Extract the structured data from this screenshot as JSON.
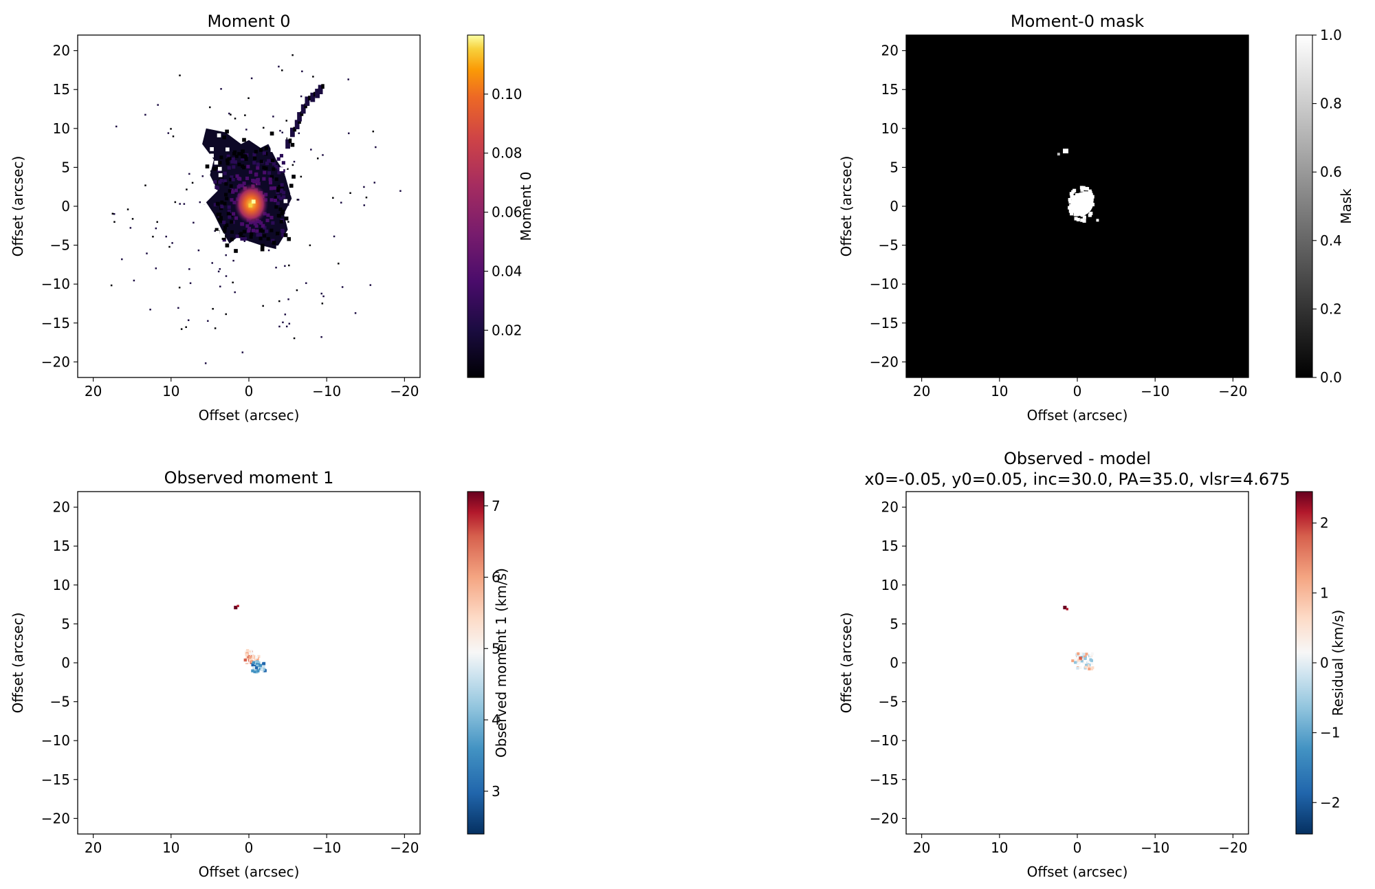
{
  "figure": {
    "panels": [
      {
        "id": "moment0",
        "title": "Moment 0",
        "subtitle": "",
        "xlabel": "Offset (arcsec)",
        "ylabel": "Offset (arcsec)",
        "colorbar": {
          "label": "Moment 0",
          "cmap": "inferno",
          "ticks": [
            "0.02",
            "0.04",
            "0.06",
            "0.08",
            "0.10"
          ],
          "tick_values": [
            0.02,
            0.04,
            0.06,
            0.08,
            0.1
          ],
          "range": [
            0.004,
            0.12
          ]
        },
        "background": "#ffffff"
      },
      {
        "id": "mask",
        "title": "Moment-0 mask",
        "subtitle": "",
        "xlabel": "Offset (arcsec)",
        "ylabel": "Offset (arcsec)",
        "colorbar": {
          "label": "Mask",
          "cmap": "gray",
          "ticks": [
            "0.0",
            "0.2",
            "0.4",
            "0.6",
            "0.8",
            "1.0"
          ],
          "tick_values": [
            0.0,
            0.2,
            0.4,
            0.6,
            0.8,
            1.0
          ],
          "range": [
            0.0,
            1.0
          ]
        },
        "background": "#000000"
      },
      {
        "id": "moment1",
        "title": "Observed moment 1",
        "subtitle": "",
        "xlabel": "Offset (arcsec)",
        "ylabel": "Offset (arcsec)",
        "colorbar": {
          "label": "Observed moment 1 (km/s)",
          "cmap": "RdBu_r",
          "ticks": [
            "3",
            "4",
            "5",
            "6",
            "7"
          ],
          "tick_values": [
            3,
            4,
            5,
            6,
            7
          ],
          "range": [
            2.4,
            7.2
          ]
        },
        "background": "#ffffff"
      },
      {
        "id": "residual",
        "title": "Observed - model",
        "subtitle": "x0=-0.05, y0=0.05, inc=30.0, PA=35.0, vlsr=4.675",
        "xlabel": "Offset (arcsec)",
        "ylabel": "Offset (arcsec)",
        "colorbar": {
          "label": "Residual (km/s)",
          "cmap": "RdBu_r",
          "ticks": [
            "−2",
            "−1",
            "0",
            "1",
            "2"
          ],
          "tick_values": [
            -2,
            -1,
            0,
            1,
            2
          ],
          "range": [
            -2.45,
            2.45
          ]
        },
        "background": "#ffffff"
      }
    ]
  },
  "chart_data": [
    {
      "type": "heatmap",
      "title": "Moment 0",
      "xlabel": "Offset (arcsec)",
      "ylabel": "Offset (arcsec)",
      "xlim": [
        22,
        -22
      ],
      "ylim": [
        -22,
        22
      ],
      "xticks": [
        20,
        10,
        0,
        -10,
        -20
      ],
      "yticks": [
        -20,
        -15,
        -10,
        -5,
        0,
        5,
        10,
        15,
        20
      ],
      "xtick_labels": [
        "20",
        "10",
        "0",
        "−10",
        "−20"
      ],
      "ytick_labels": [
        "−20",
        "−15",
        "−10",
        "−5",
        "0",
        "5",
        "10",
        "15",
        "20"
      ],
      "colorbar_label": "Moment 0",
      "vrange": [
        0.004,
        0.12
      ],
      "emission": "irregular cloud centred near (0,0), extending from x≈6 to x≈-5 and y≈-5.5 to y≈10, with a filament toward x≈-9, y≈15; peak ≈0.12 near (-0.5,0.5); sparse isolated pixels across the field"
    },
    {
      "type": "heatmap",
      "title": "Moment-0 mask",
      "xlabel": "Offset (arcsec)",
      "ylabel": "Offset (arcsec)",
      "xlim": [
        22,
        -22
      ],
      "ylim": [
        -22,
        22
      ],
      "xticks": [
        20,
        10,
        0,
        -10,
        -20
      ],
      "yticks": [
        -20,
        -15,
        -10,
        -5,
        0,
        5,
        10,
        15,
        20
      ],
      "xtick_labels": [
        "20",
        "10",
        "0",
        "−10",
        "−20"
      ],
      "ytick_labels": [
        "−20",
        "−15",
        "−10",
        "−5",
        "0",
        "5",
        "10",
        "15",
        "20"
      ],
      "colorbar_label": "Mask",
      "vrange": [
        0,
        1
      ],
      "emission": "mask = 1 in a compact region around (-0.5,0) spanning x≈3 to -3, y≈-2 to 3, plus a small patch near (1.5,7); 0 elsewhere"
    },
    {
      "type": "heatmap",
      "title": "Observed moment 1",
      "xlabel": "Offset (arcsec)",
      "ylabel": "Offset (arcsec)",
      "xlim": [
        22,
        -22
      ],
      "ylim": [
        -22,
        22
      ],
      "xticks": [
        20,
        10,
        0,
        -10,
        -20
      ],
      "yticks": [
        -20,
        -15,
        -10,
        -5,
        0,
        5,
        10,
        15,
        20
      ],
      "xtick_labels": [
        "20",
        "10",
        "0",
        "−10",
        "−20"
      ],
      "ytick_labels": [
        "−20",
        "−15",
        "−10",
        "−5",
        "0",
        "5",
        "10",
        "15",
        "20"
      ],
      "colorbar_label": "Observed moment 1 (km/s)",
      "vrange": [
        2.4,
        7.2
      ],
      "emission": "redshifted (~6 km/s) pixels near (-0.5,1), blueshifted (~3 km/s) pixels near (-1.5,-0.5), a ~7 km/s knot near (1.5,7)"
    },
    {
      "type": "heatmap",
      "title": "Observed - model",
      "subtitle": "x0=-0.05, y0=0.05, inc=30.0, PA=35.0, vlsr=4.675",
      "xlabel": "Offset (arcsec)",
      "ylabel": "Offset (arcsec)",
      "xlim": [
        22,
        -22
      ],
      "ylim": [
        -22,
        22
      ],
      "xticks": [
        20,
        10,
        0,
        -10,
        -20
      ],
      "yticks": [
        -20,
        -15,
        -10,
        -5,
        0,
        5,
        10,
        15,
        20
      ],
      "xtick_labels": [
        "20",
        "10",
        "0",
        "−10",
        "−20"
      ],
      "ytick_labels": [
        "−20",
        "−15",
        "−10",
        "−5",
        "0",
        "5",
        "10",
        "15",
        "20"
      ],
      "colorbar_label": "Residual (km/s)",
      "vrange": [
        -2.45,
        2.45
      ],
      "emission": "small residuals (~+0.7 km/s) near (-0.5,0.5), slightly negative near (-1,-0.5), strong +2.4 km/s knot near (1.5,7)"
    }
  ]
}
